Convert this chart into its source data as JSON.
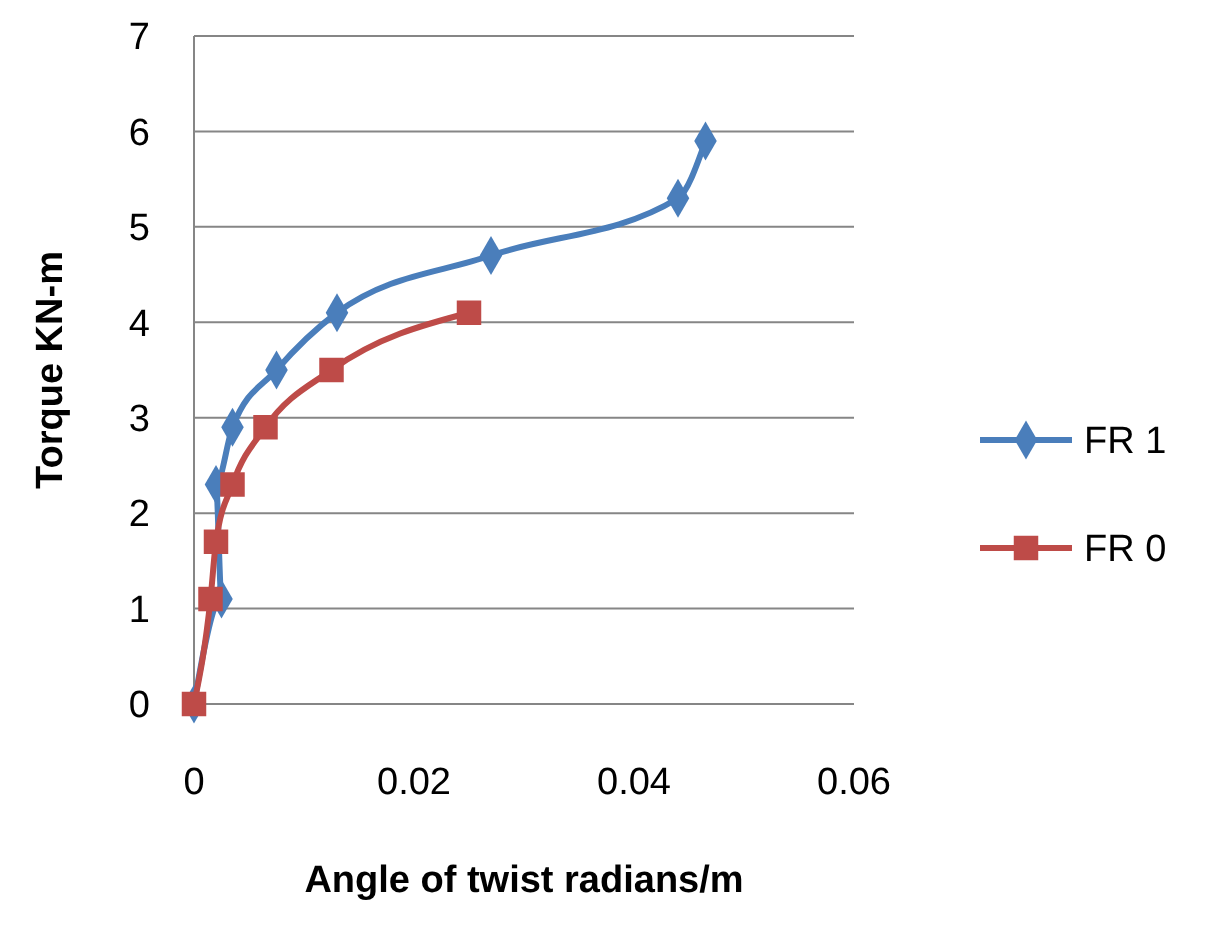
{
  "chart_data": {
    "type": "line",
    "xlabel": "Angle of twist radians/m",
    "ylabel": "Torque KN-m",
    "xlim": [
      0,
      0.06
    ],
    "xticks": [
      0,
      0.02,
      0.04,
      0.06
    ],
    "ylim": [
      0,
      7
    ],
    "yticks": [
      0,
      1,
      2,
      3,
      4,
      5,
      6,
      7
    ],
    "grid": "y",
    "legend": "right",
    "series": [
      {
        "name": "FR 1",
        "color": "#4a7ebb",
        "marker": "diamond",
        "x": [
          0,
          0.0025,
          0.002,
          0.0035,
          0.0075,
          0.013,
          0.027,
          0.044,
          0.0465
        ],
        "values": [
          0,
          1.1,
          2.3,
          2.9,
          3.5,
          4.1,
          4.7,
          5.3,
          5.9
        ]
      },
      {
        "name": "FR 0",
        "color": "#be4b48",
        "marker": "square",
        "x": [
          0,
          0.0015,
          0.002,
          0.0035,
          0.0065,
          0.0125,
          0.025
        ],
        "values": [
          0,
          1.1,
          1.7,
          2.3,
          2.9,
          3.5,
          4.1
        ]
      }
    ]
  }
}
